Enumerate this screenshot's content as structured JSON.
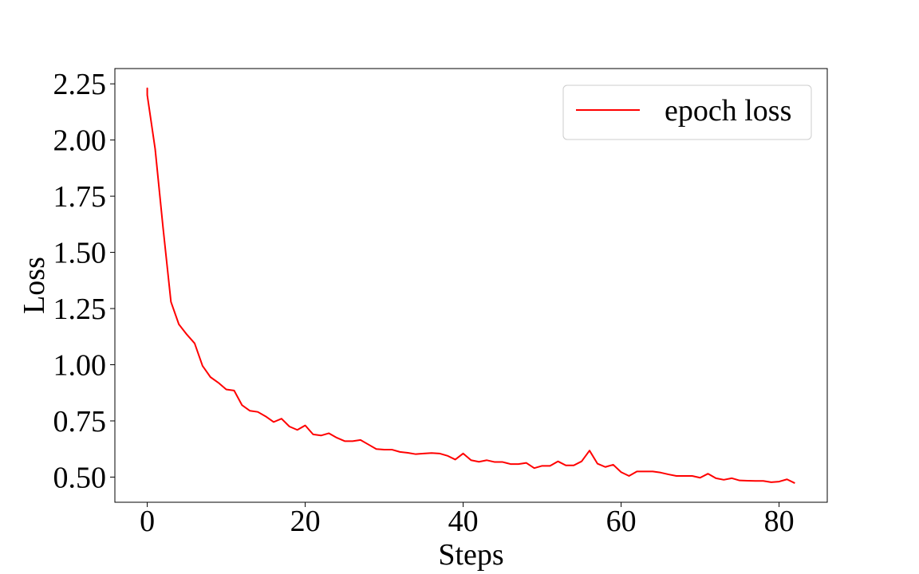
{
  "chart_data": {
    "type": "line",
    "title": "",
    "xlabel": "Steps",
    "ylabel": "Loss",
    "xlim": [
      -4.1,
      86.1
    ],
    "ylim": [
      0.388,
      2.318
    ],
    "xticks": [
      0,
      20,
      40,
      60,
      80
    ],
    "yticks": [
      0.5,
      0.75,
      1.0,
      1.25,
      1.5,
      1.75,
      2.0,
      2.25
    ],
    "xtick_labels": [
      "0",
      "20",
      "40",
      "60",
      "80"
    ],
    "ytick_labels": [
      "0.50",
      "0.75",
      "1.00",
      "1.25",
      "1.50",
      "1.75",
      "2.00",
      "2.25"
    ],
    "grid": false,
    "legend_position": "top-right",
    "series": [
      {
        "name": "epoch loss",
        "color": "#ff0000",
        "x": [
          0,
          0,
          0,
          1,
          2,
          3,
          4,
          5,
          6,
          7,
          8,
          9,
          10,
          11,
          12,
          13,
          14,
          15,
          16,
          17,
          18,
          19,
          20,
          21,
          22,
          23,
          24,
          25,
          26,
          27,
          28,
          29,
          30,
          31,
          32,
          33,
          34,
          35,
          36,
          37,
          38,
          39,
          40,
          41,
          42,
          43,
          44,
          45,
          46,
          47,
          48,
          49,
          50,
          51,
          52,
          53,
          54,
          55,
          56,
          57,
          58,
          59,
          60,
          61,
          62,
          63,
          64,
          65,
          66,
          67,
          68,
          69,
          70,
          71,
          72,
          73,
          74,
          75,
          76,
          77,
          78,
          79,
          80,
          81,
          82
        ],
        "y": [
          2.2,
          2.23,
          2.2,
          1.96,
          1.61,
          1.28,
          1.18,
          1.135,
          1.095,
          0.995,
          0.945,
          0.92,
          0.89,
          0.885,
          0.82,
          0.795,
          0.79,
          0.77,
          0.745,
          0.76,
          0.725,
          0.71,
          0.73,
          0.69,
          0.685,
          0.695,
          0.675,
          0.66,
          0.66,
          0.665,
          0.645,
          0.625,
          0.622,
          0.622,
          0.612,
          0.608,
          0.602,
          0.605,
          0.607,
          0.605,
          0.595,
          0.578,
          0.605,
          0.575,
          0.568,
          0.575,
          0.567,
          0.567,
          0.558,
          0.558,
          0.563,
          0.54,
          0.55,
          0.55,
          0.57,
          0.552,
          0.552,
          0.57,
          0.618,
          0.56,
          0.545,
          0.555,
          0.522,
          0.505,
          0.525,
          0.525,
          0.525,
          0.52,
          0.512,
          0.505,
          0.505,
          0.505,
          0.497,
          0.515,
          0.495,
          0.488,
          0.495,
          0.485,
          0.484,
          0.483,
          0.483,
          0.477,
          0.48,
          0.49,
          0.473
        ]
      }
    ]
  }
}
